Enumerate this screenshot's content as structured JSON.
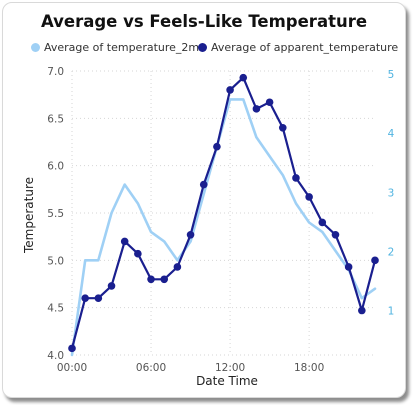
{
  "chart_data": {
    "type": "line",
    "title": "Average vs Feels-Like Temperature",
    "xlabel": "Date Time",
    "ylabel": "Temperature",
    "x": [
      "00:00",
      "01:00",
      "02:00",
      "03:00",
      "04:00",
      "05:00",
      "06:00",
      "07:00",
      "08:00",
      "09:00",
      "10:00",
      "11:00",
      "12:00",
      "13:00",
      "14:00",
      "15:00",
      "16:00",
      "17:00",
      "18:00",
      "19:00",
      "20:00",
      "21:00",
      "22:00",
      "23:00"
    ],
    "x_tick_labels": [
      "00:00",
      "06:00",
      "12:00",
      "18:00"
    ],
    "ylim": [
      4.0,
      7.0
    ],
    "y_ticks": [
      "4.0",
      "4.5",
      "5.0",
      "5.5",
      "6.0",
      "6.5",
      "7.0"
    ],
    "y2lim": [
      0.25,
      5.05
    ],
    "y2_ticks": [
      "1",
      "2",
      "3",
      "4",
      "5"
    ],
    "grid": true,
    "legend": "top",
    "series": [
      {
        "name": "Average of temperature_2m",
        "axis": "left",
        "color": "#9fd0f5",
        "markers": false,
        "values": [
          4.0,
          5.0,
          5.0,
          5.5,
          5.8,
          5.6,
          5.3,
          5.2,
          5.0,
          5.2,
          5.7,
          6.2,
          6.7,
          6.7,
          6.3,
          6.1,
          5.9,
          5.6,
          5.4,
          5.3,
          5.1,
          4.9,
          4.6,
          4.7
        ]
      },
      {
        "name": "Average of apparent_temperature",
        "axis": "left",
        "color": "#1a1f8f",
        "markers": true,
        "values": [
          4.07,
          4.6,
          4.6,
          4.73,
          5.2,
          5.07,
          4.8,
          4.8,
          4.93,
          5.27,
          5.8,
          6.2,
          6.8,
          6.93,
          6.6,
          6.67,
          6.4,
          5.87,
          5.67,
          5.4,
          5.27,
          4.93,
          4.47,
          5.0
        ]
      }
    ]
  }
}
